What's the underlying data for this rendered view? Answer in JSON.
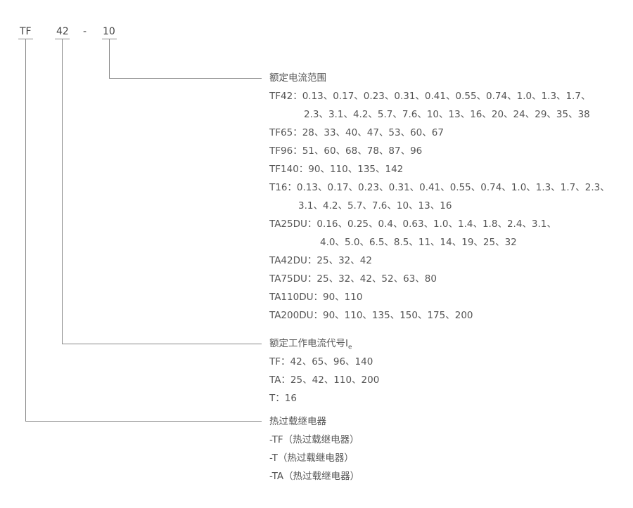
{
  "model_code": {
    "series": "TF",
    "current_code": "42",
    "dash": "-",
    "range": "10"
  },
  "rated_current_range": {
    "title": "额定电流范围",
    "lines": [
      "TF42：0.13、0.17、0.23、0.31、0.41、0.55、0.74、1.0、1.3、1.7、",
      "2.3、3.1、4.2、5.7、7.6、10、13、16、20、24、29、35、38",
      "TF65：28、33、40、47、53、60、67",
      "TF96：51、60、68、78、87、96",
      "TF140：90、110、135、142",
      "T16：0.13、0.17、0.23、0.31、0.41、0.55、0.74、1.0、1.3、1.7、2.3、",
      "3.1、4.2、5.7、7.6、10、13、16",
      "TA25DU：0.16、0.25、0.4、0.63、1.0、1.4、1.8、2.4、3.1、",
      "4.0、5.0、6.5、8.5、11、14、19、25、32",
      "TA42DU：25、32、42",
      "TA75DU：25、32、42、52、63、80",
      "TA110DU：90、110",
      "TA200DU：90、110、135、150、175、200"
    ]
  },
  "rated_current_code": {
    "title": "额定工作电流代号I",
    "title_sub": "e",
    "lines": [
      "TF：42、65、96、140",
      "TA：25、42、110、200",
      "T：16"
    ]
  },
  "relay": {
    "title": "热过载继电器",
    "lines": [
      "-TF（热过载继电器）",
      "-T（热过载继电器）",
      "-TA（热过载继电器）"
    ]
  }
}
